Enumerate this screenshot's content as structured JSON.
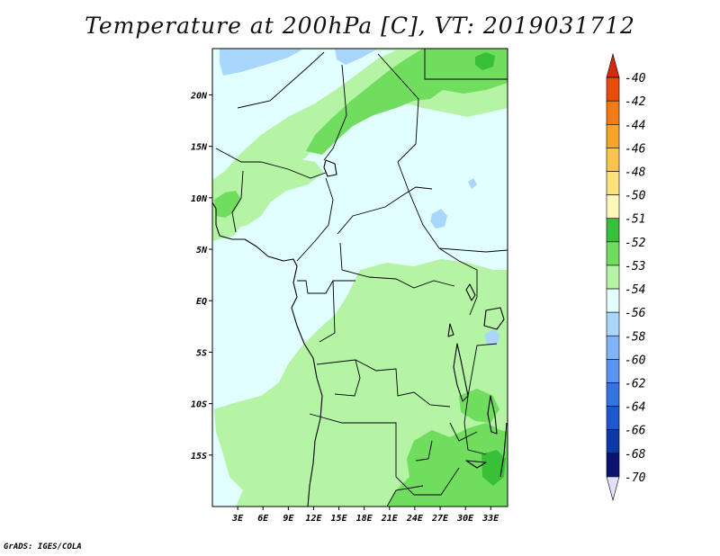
{
  "map": {
    "title": "Temperature at 200hPa [C], VT: 2019031712",
    "credit": "GrADS: IGES/COLA",
    "lat_ticks": [
      "20N",
      "15N",
      "10N",
      "5N",
      "EQ",
      "5S",
      "10S",
      "15S"
    ],
    "lat_values": [
      20,
      15,
      10,
      5,
      0,
      -5,
      -10,
      -15
    ],
    "lon_ticks": [
      "3E",
      "6E",
      "9E",
      "12E",
      "15E",
      "18E",
      "21E",
      "24E",
      "27E",
      "30E",
      "33E"
    ],
    "lon_values": [
      3,
      6,
      9,
      12,
      15,
      18,
      21,
      24,
      27,
      30,
      33
    ],
    "extent": {
      "lon_min": 0,
      "lon_max": 35,
      "lat_min": -20,
      "lat_max": 24.5
    }
  },
  "colorbar": {
    "labels": [
      "-40",
      "-42",
      "-44",
      "-46",
      "-48",
      "-50",
      "-51",
      "-52",
      "-53",
      "-54",
      "-56",
      "-58",
      "-60",
      "-62",
      "-64",
      "-66",
      "-68",
      "-70"
    ],
    "colors": [
      "#d42a10",
      "#ec4a0c",
      "#f27a14",
      "#f7a428",
      "#fbc44a",
      "#fde27a",
      "#fdf7b8",
      "#38c038",
      "#70dd5f",
      "#b4f4a4",
      "#e1fffe",
      "#a8d6fc",
      "#80b4f8",
      "#5a94ee",
      "#3474e0",
      "#1e58cc",
      "#0c3aa4",
      "#0a1470",
      "#e0e0f8"
    ]
  }
}
